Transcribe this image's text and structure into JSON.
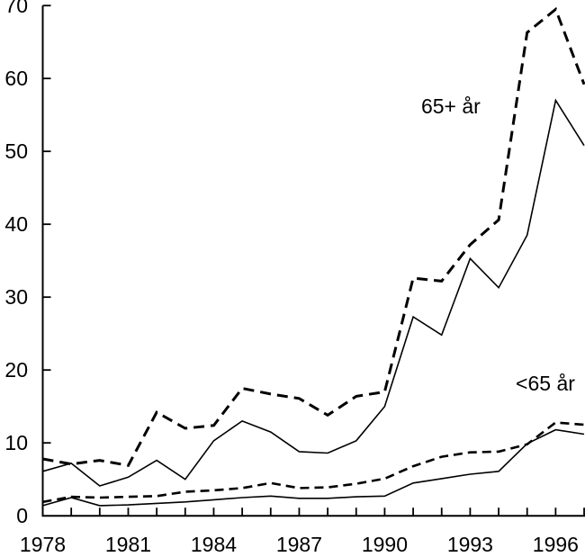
{
  "chart_data": {
    "type": "line",
    "title": "",
    "xlabel": "",
    "ylabel": "",
    "xlim": [
      1978,
      1997
    ],
    "ylim": [
      0,
      70
    ],
    "grid": false,
    "background": "#ffffff",
    "line_color": "#000000",
    "yticks": [
      0,
      10,
      20,
      30,
      40,
      50,
      60,
      70
    ],
    "xticks_labeled": [
      1978,
      1981,
      1984,
      1987,
      1990,
      1993,
      1996
    ],
    "xticks_minor_every_year": true,
    "x": [
      1978,
      1979,
      1980,
      1981,
      1982,
      1983,
      1984,
      1985,
      1986,
      1987,
      1988,
      1989,
      1990,
      1991,
      1992,
      1993,
      1994,
      1995,
      1996,
      1997
    ],
    "series": [
      {
        "key": "65plus-dashed",
        "name": "65+ år (dashed)",
        "group": "65+ år",
        "style": "dashed",
        "weight": "bold",
        "values": [
          7.8,
          7.1,
          7.6,
          6.9,
          14.2,
          12.0,
          12.4,
          17.5,
          16.7,
          16.1,
          13.8,
          16.4,
          17.0,
          32.6,
          32.2,
          37.2,
          40.6,
          66.3,
          69.5,
          59.2
        ]
      },
      {
        "key": "65plus-solid",
        "name": "65+ år (solid)",
        "group": "65+ år",
        "style": "solid",
        "weight": "normal",
        "values": [
          6.1,
          7.2,
          4.1,
          5.3,
          7.6,
          5.0,
          10.3,
          13.0,
          11.5,
          8.8,
          8.6,
          10.3,
          15.0,
          27.3,
          24.8,
          35.3,
          31.3,
          38.5,
          57.0,
          50.8
        ]
      },
      {
        "key": "under65-dashed",
        "name": "<65 år (dashed)",
        "group": "<65 år",
        "style": "dashed",
        "weight": "normal",
        "values": [
          1.9,
          2.6,
          2.5,
          2.6,
          2.7,
          3.3,
          3.5,
          3.8,
          4.5,
          3.8,
          3.9,
          4.4,
          5.1,
          6.8,
          8.1,
          8.7,
          8.8,
          9.8,
          12.8,
          12.5
        ]
      },
      {
        "key": "under65-solid",
        "name": "<65 år (solid)",
        "group": "<65 år",
        "style": "solid",
        "weight": "normal",
        "values": [
          1.4,
          2.5,
          1.4,
          1.5,
          1.7,
          1.9,
          2.2,
          2.5,
          2.7,
          2.4,
          2.4,
          2.6,
          2.7,
          4.5,
          5.1,
          5.7,
          6.1,
          9.9,
          11.8,
          11.2
        ]
      }
    ],
    "annotations": [
      {
        "key": "65plus",
        "text": "65+ år",
        "x": 1992.32,
        "y": 56.2
      },
      {
        "key": "under65",
        "text": "<65 år",
        "x": 1995.64,
        "y": 18.2
      }
    ]
  }
}
